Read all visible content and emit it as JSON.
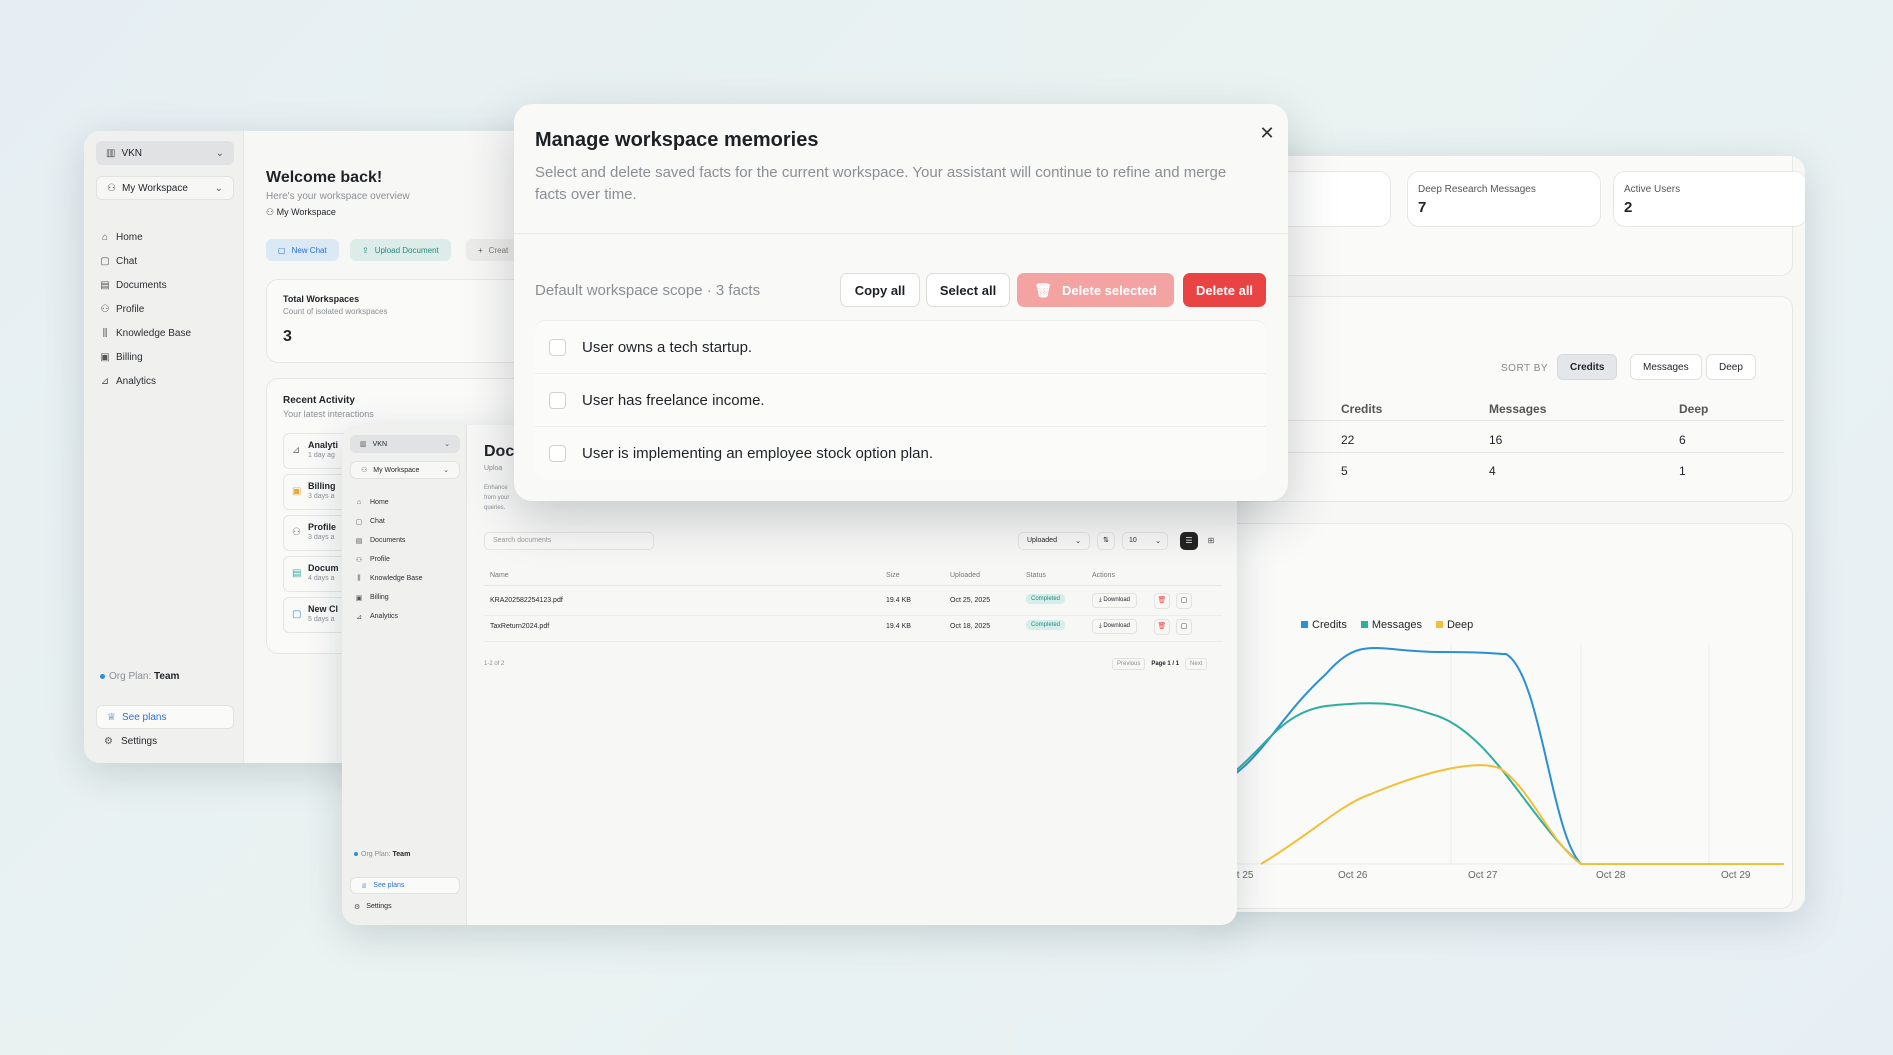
{
  "left": {
    "org": "VKN",
    "workspace": "My Workspace",
    "nav": [
      "Home",
      "Chat",
      "Documents",
      "Profile",
      "Knowledge Base",
      "Billing",
      "Analytics"
    ],
    "welcome": "Welcome back!",
    "subtitle": "Here's your workspace overview",
    "ws_label": "My Workspace",
    "actions": [
      "New Chat",
      "Upload Document",
      "Creat"
    ],
    "stat": {
      "title": "Total Workspaces",
      "sub": "Count of isolated workspaces",
      "value": "3"
    },
    "activity": {
      "title": "Recent Activity",
      "sub": "Your latest interactions",
      "items": [
        {
          "name": "Analyti",
          "time": "1 day ag"
        },
        {
          "name": "Billing",
          "time": "3 days a"
        },
        {
          "name": "Profile",
          "time": "3 days a"
        },
        {
          "name": "Docum",
          "time": "4 days a"
        },
        {
          "name": "New Cl",
          "time": "5 days a"
        }
      ]
    },
    "plan_label": "Org Plan:",
    "plan": "Team",
    "see_plans": "See plans",
    "settings": "Settings"
  },
  "right": {
    "stats": [
      {
        "label": "Deep Research Messages",
        "value": "7"
      },
      {
        "label": "Active Users",
        "value": "2"
      }
    ],
    "sort_label": "SORT BY",
    "sort": [
      "Credits",
      "Messages",
      "Deep"
    ],
    "table_headers": [
      "Credits",
      "Messages",
      "Deep"
    ],
    "rows": [
      [
        "22",
        "16",
        "6"
      ],
      [
        "5",
        "4",
        "1"
      ]
    ],
    "legend": [
      "Credits",
      "Messages",
      "Deep"
    ]
  },
  "chart_data": {
    "type": "line",
    "x": [
      "Oct 25",
      "Oct 26",
      "Oct 27",
      "Oct 28",
      "Oct 29"
    ],
    "series": [
      {
        "name": "Credits",
        "color": "#2b8fd3"
      },
      {
        "name": "Messages",
        "color": "#2fae9e"
      },
      {
        "name": "Deep",
        "color": "#f2bf3a"
      }
    ],
    "legend_position": "top-left",
    "grid": true
  },
  "mid": {
    "org": "VKN",
    "workspace": "My Workspace",
    "nav": [
      "Home",
      "Chat",
      "Documents",
      "Profile",
      "Knowledge Base",
      "Billing",
      "Analytics"
    ],
    "title": "Doc",
    "upload": "Uploa",
    "enhance": "Enhance",
    "from": "from your",
    "queries": "queries.",
    "search_placeholder": "Search documents",
    "sort_select": "Uploaded",
    "page_size": "10",
    "headers": [
      "Name",
      "Size",
      "Uploaded",
      "Status",
      "Actions"
    ],
    "files": [
      {
        "name": "KRA202582254123.pdf",
        "size": "19.4 KB",
        "date": "Oct 25, 2025",
        "status": "Completed",
        "action": "Download"
      },
      {
        "name": "TaxReturn2024.pdf",
        "size": "19.4 KB",
        "date": "Oct 18, 2025",
        "status": "Completed",
        "action": "Download"
      }
    ],
    "range": "1-2 of 2",
    "prev": "Previous",
    "page": "Page 1 / 1",
    "next": "Next",
    "plan_label": "Org Plan:",
    "plan": "Team",
    "see_plans": "See plans",
    "settings": "Settings"
  },
  "modal": {
    "title": "Manage workspace memories",
    "description": "Select and delete saved facts for the current workspace. Your assistant will continue to refine and merge facts over time.",
    "scope": "Default workspace scope · 3 facts",
    "copy_all": "Copy all",
    "select_all": "Select all",
    "delete_selected": "Delete selected",
    "delete_all": "Delete all",
    "facts": [
      "User owns a tech startup.",
      "User has freelance income.",
      "User is implementing an employee stock option plan."
    ]
  }
}
